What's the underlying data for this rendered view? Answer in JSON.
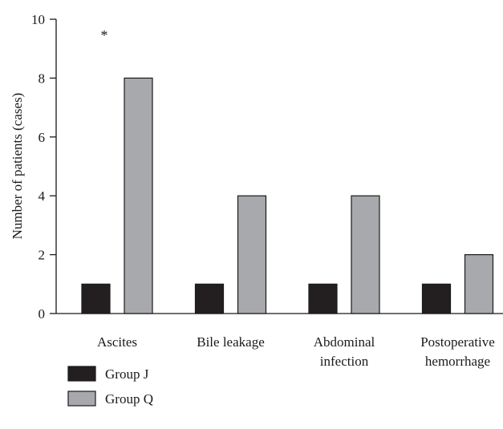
{
  "chart_data": {
    "type": "bar",
    "title": "",
    "xlabel": "",
    "ylabel": "Number of patients (cases)",
    "ylim": [
      0,
      10
    ],
    "yticks": [
      0,
      2,
      4,
      6,
      8,
      10
    ],
    "grid": false,
    "legend_position": "bottom-left",
    "categories": [
      [
        "Ascites"
      ],
      [
        "Bile leakage"
      ],
      [
        "Abdominal",
        "infection"
      ],
      [
        "Postoperative",
        "hemorrhage"
      ]
    ],
    "series": [
      {
        "name": "Group J",
        "color": "#231f20",
        "values": [
          1,
          1,
          1,
          1
        ]
      },
      {
        "name": "Group Q",
        "color": "#a7a9ac",
        "values": [
          8,
          4,
          4,
          2
        ]
      }
    ],
    "annotations": [
      {
        "text": "*",
        "category_index": 0
      }
    ]
  }
}
